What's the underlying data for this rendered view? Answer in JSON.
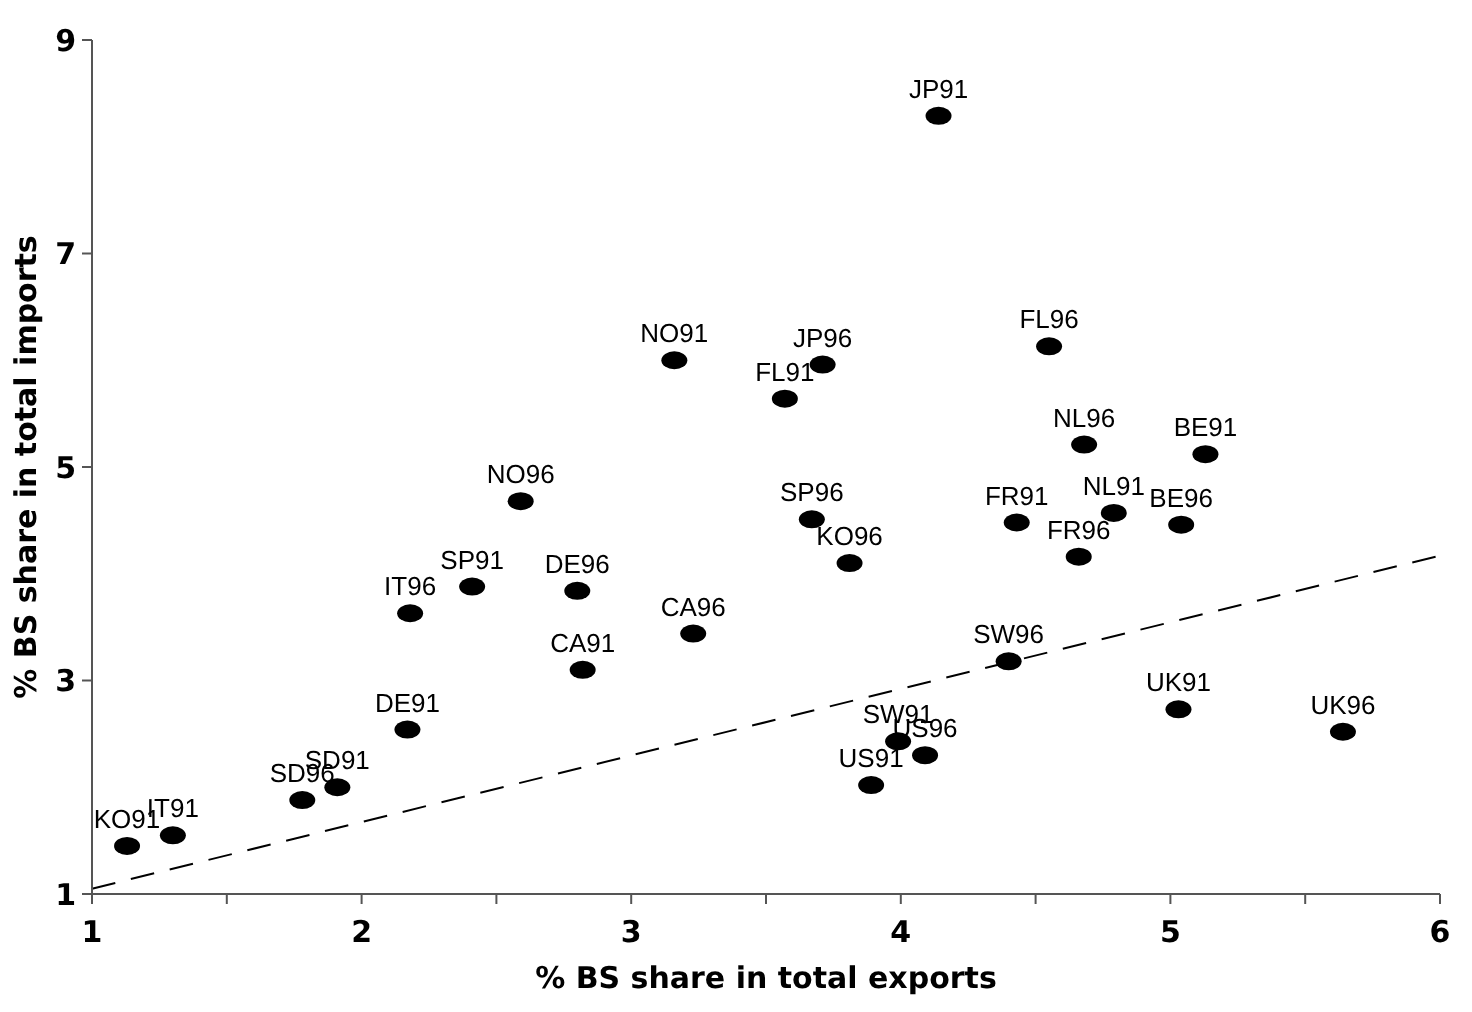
{
  "chart_data": {
    "type": "scatter",
    "xlabel": "% BS share in total exports",
    "ylabel": "% BS share in total imports",
    "xlim": [
      1,
      6
    ],
    "ylim": [
      1,
      9
    ],
    "xticks": [
      1,
      {
        "value": 1.5,
        "label": null
      },
      2,
      {
        "value": 2.5,
        "label": null
      },
      3,
      {
        "value": 3.5,
        "label": null
      },
      4,
      {
        "value": 4.5,
        "label": null
      },
      5,
      {
        "value": 5.5,
        "label": null
      },
      6
    ],
    "yticks": [
      1,
      3,
      5,
      7,
      9
    ],
    "grid": false,
    "marker": "circle",
    "series": [
      {
        "color": "#000000",
        "x": [
          1.13,
          1.3,
          1.78,
          1.91,
          2.17,
          2.18,
          2.41,
          2.59,
          2.8,
          2.82,
          3.23,
          3.16,
          3.71,
          3.57,
          4.14,
          4.55,
          4.68,
          5.13,
          3.67,
          3.81,
          4.43,
          4.79,
          5.04,
          4.66,
          4.4,
          5.03,
          5.64,
          3.99,
          4.09,
          3.89
        ],
        "values": [
          1.45,
          1.55,
          1.88,
          2.0,
          2.54,
          3.63,
          3.88,
          4.68,
          3.84,
          3.1,
          3.44,
          6.0,
          5.96,
          5.64,
          8.29,
          6.13,
          5.21,
          5.12,
          4.51,
          4.1,
          4.48,
          4.57,
          4.46,
          4.16,
          3.18,
          2.73,
          2.52,
          2.43,
          2.3,
          2.02
        ],
        "value_labels": [
          "KO91",
          "IT91",
          "SD96",
          "SD91",
          "DE91",
          "IT96",
          "SP91",
          "NO96",
          "DE96",
          "CA91",
          "CA96",
          "NO91",
          "JP96",
          "FL91",
          "JP91",
          "FL96",
          "NL96",
          "BE91",
          "SP96",
          "KO96",
          "FR91",
          "NL91",
          "BE96",
          "FR96",
          "SW96",
          "UK91",
          "UK96",
          "SW91",
          "US96",
          "US91"
        ]
      },
      {
        "type": "line",
        "color": "#000000",
        "line_style": "dashed",
        "marker": "none",
        "x": [
          1,
          6
        ],
        "values": [
          1.05,
          4.17
        ]
      }
    ]
  }
}
